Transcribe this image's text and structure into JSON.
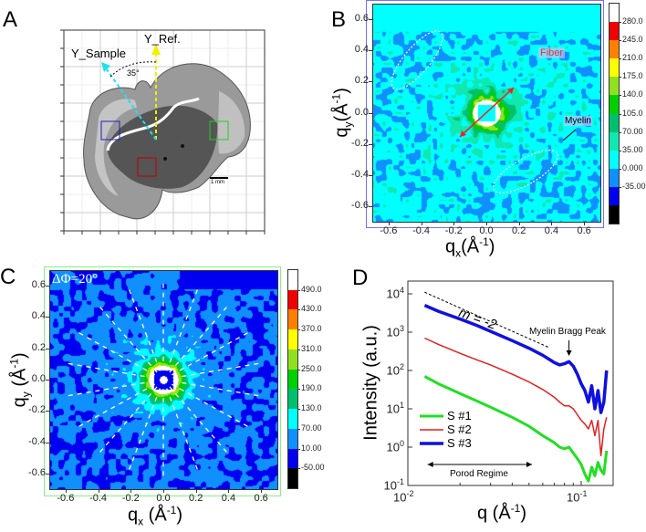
{
  "panels": {
    "a": "A",
    "b": "B",
    "c": "C",
    "d": "D"
  },
  "panel_a": {
    "y_ref_label": "Y_Ref.",
    "y_sample_label": "Y_Sample",
    "angle_label": "35°",
    "scale_bar_label": "1 mm",
    "box_colors": {
      "blue": "#2020c0",
      "red": "#c00000",
      "green": "#20d020"
    },
    "arrow_colors": {
      "y_ref": "#f0f000",
      "y_sample": "#20e0f0"
    }
  },
  "chart_data": [
    {
      "id": "B",
      "type": "heatmap",
      "xlabel": "q",
      "xlabel_sub": "x",
      "xlabel_unit": "(Å",
      "xlabel_sup": "-1",
      "xlabel_end": ")",
      "ylabel": "q",
      "ylabel_sub": "y",
      "ylabel_unit": "(Å",
      "ylabel_sup": "-1",
      "ylabel_end": ")",
      "xlim": [
        -0.7,
        0.7
      ],
      "ylim": [
        -0.7,
        0.7
      ],
      "xticks": [
        "-0.6",
        "-0.4",
        "-0.2",
        "0.0",
        "0.2",
        "0.4",
        "0.6"
      ],
      "yticks": [
        "0.6",
        "0.4",
        "0.2",
        "0.0",
        "-0.2",
        "-0.4",
        "-0.6"
      ],
      "tick_values": [
        -0.6,
        -0.4,
        -0.2,
        0.0,
        0.2,
        0.4,
        0.6
      ],
      "colorbar_labels": [
        "280.0",
        "245.0",
        "210.0",
        "175.0",
        "140.0",
        "105.0",
        "70.00",
        "35.00",
        "0.000",
        "-35.00"
      ],
      "levels": [
        280,
        245,
        210,
        175,
        140,
        105,
        70,
        35,
        0,
        -35
      ],
      "colors": [
        "#ffffff",
        "#f00000",
        "#ff8000",
        "#ffff00",
        "#90e020",
        "#00d000",
        "#00c070",
        "#10e8b0",
        "#00ffff",
        "#1090ff",
        "#0000f0",
        "#000000"
      ],
      "annotations": {
        "fiber": "Fiber",
        "myelin": "Myelin"
      },
      "frame_color": "#7070ff"
    },
    {
      "id": "C",
      "type": "heatmap",
      "xlabel": "q",
      "xlabel_sub": "x",
      "xlabel_unit": " (Å",
      "xlabel_sup": "-1",
      "xlabel_end": ")",
      "ylabel": "q",
      "ylabel_sub": "y",
      "ylabel_unit": " (Å",
      "ylabel_sup": "-1",
      "ylabel_end": ")",
      "xlim": [
        -0.7,
        0.7
      ],
      "ylim": [
        -0.7,
        0.7
      ],
      "xticks": [
        "-0.6",
        "-0.4",
        "-0.2",
        "0.0",
        "0.2",
        "0.4",
        "0.6"
      ],
      "yticks": [
        "0.6",
        "0.4",
        "0.2",
        "0.0",
        "-0.2",
        "-0.4",
        "-0.6"
      ],
      "tick_values": [
        -0.6,
        -0.4,
        -0.2,
        0.0,
        0.2,
        0.4,
        0.6
      ],
      "colorbar_labels": [
        "490.0",
        "430.0",
        "370.0",
        "310.0",
        "250.0",
        "190.0",
        "130.0",
        "70.00",
        "10.00",
        "-50.00"
      ],
      "levels": [
        490,
        430,
        370,
        310,
        250,
        190,
        130,
        70,
        10,
        -50
      ],
      "colors": [
        "#ffffff",
        "#f00000",
        "#ff8000",
        "#ffff00",
        "#90e020",
        "#00d000",
        "#00c070",
        "#00ffff",
        "#1090ff",
        "#0000f0",
        "#000000"
      ],
      "annotation": "ΔΦ=20°",
      "sector_step_deg": 20,
      "frame_color": "#80f080"
    },
    {
      "id": "D",
      "type": "line",
      "xlabel": "q (Å",
      "xlabel_sup": "-1",
      "xlabel_end": ")",
      "ylabel": "Intensity (a.u.)",
      "xscale": "log",
      "yscale": "log",
      "xlim": [
        0.01,
        0.152
      ],
      "ylim": [
        0.1,
        21000
      ],
      "xticks": [
        {
          "base": "10",
          "exp": "-2",
          "value": 0.01
        },
        {
          "base": "10",
          "exp": "-1",
          "value": 0.1
        }
      ],
      "yticks": [
        {
          "base": "10",
          "exp": "4",
          "value": 10000
        },
        {
          "base": "10",
          "exp": "3",
          "value": 1000
        },
        {
          "base": "10",
          "exp": "2",
          "value": 100
        },
        {
          "base": "10",
          "exp": "1",
          "value": 10
        },
        {
          "base": "10",
          "exp": "0",
          "value": 1
        },
        {
          "base": "10",
          "exp": "-1",
          "value": 0.1
        }
      ],
      "x": [
        0.0125,
        0.015,
        0.02,
        0.025,
        0.03,
        0.04,
        0.05,
        0.06,
        0.07,
        0.075,
        0.08,
        0.085,
        0.09,
        0.095,
        0.1,
        0.105,
        0.11,
        0.115,
        0.12,
        0.125,
        0.13,
        0.135,
        0.14
      ],
      "series": [
        {
          "name": "S #1",
          "color": "#20e020",
          "width": 3,
          "values": [
            70,
            45,
            25,
            16,
            11,
            6,
            3.5,
            2,
            1.3,
            1.0,
            0.9,
            1.0,
            0.7,
            0.5,
            0.35,
            0.2,
            0.13,
            0.3,
            0.18,
            0.4,
            0.25,
            0.2,
            0.8
          ]
        },
        {
          "name": "S #2",
          "color": "#e02020",
          "width": 1.5,
          "values": [
            700,
            480,
            280,
            190,
            140,
            80,
            50,
            32,
            20,
            15,
            12,
            12,
            10,
            7,
            5,
            4,
            3,
            5,
            2,
            5,
            0.6,
            3,
            6
          ]
        },
        {
          "name": "S #3",
          "color": "#1010e0",
          "width": 3.5,
          "values": [
            5000,
            3500,
            2200,
            1500,
            1050,
            600,
            380,
            250,
            160,
            140,
            150,
            170,
            130,
            80,
            45,
            30,
            15,
            40,
            10,
            30,
            8,
            15,
            100
          ]
        }
      ],
      "slope_line": {
        "label": "m = -2",
        "x": [
          0.0125,
          0.065
        ],
        "y": [
          11000,
          400
        ]
      },
      "peak_annotation": {
        "label": "Myelin Bragg Peak",
        "x": 0.085
      },
      "range_annotation": {
        "label": "Porod Regime",
        "x": [
          0.013,
          0.052
        ]
      },
      "legend_position": "lower-left"
    }
  ]
}
